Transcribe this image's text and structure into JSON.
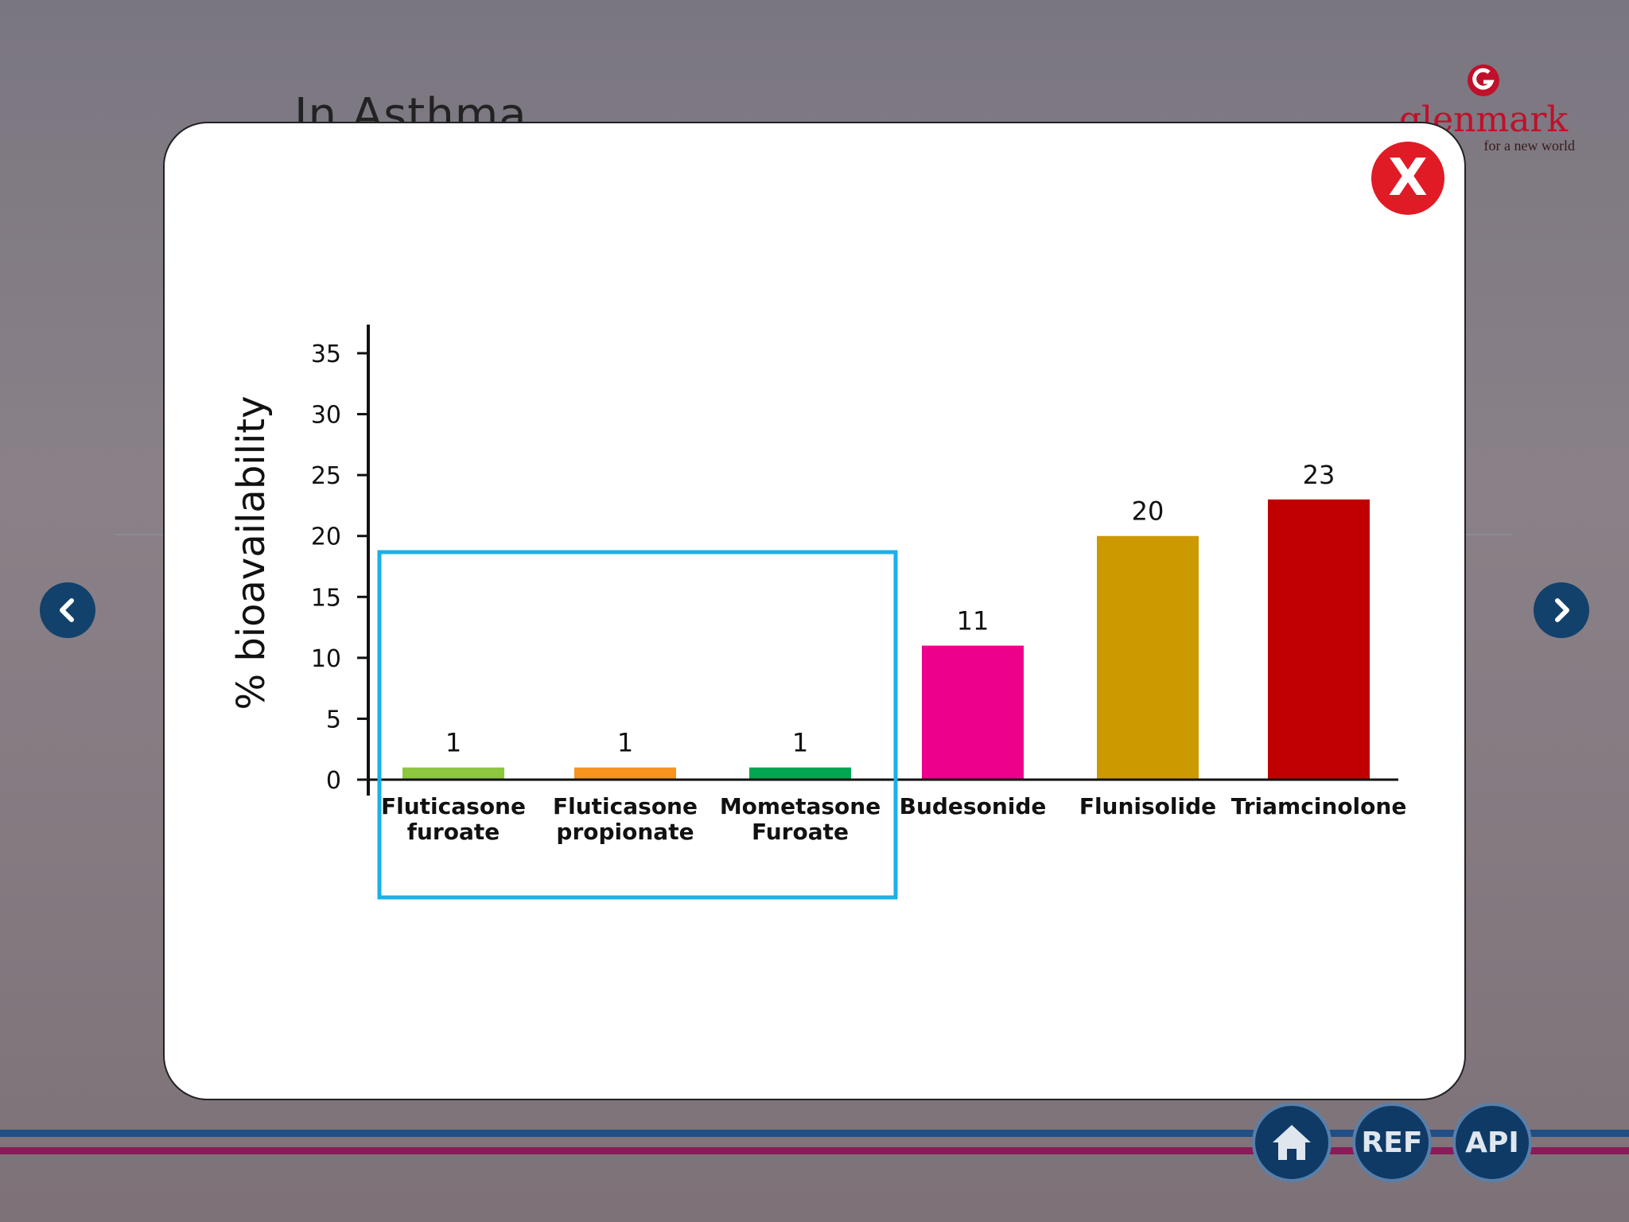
{
  "background": {
    "title": "In Asthma",
    "logo": {
      "name": "glenmark",
      "tagline": "for a new world"
    }
  },
  "navigation": {
    "prev_icon": "chevron-left-icon",
    "next_icon": "chevron-right-icon"
  },
  "footer": {
    "home_icon": "home-icon",
    "ref_label": "REF",
    "api_label": "API"
  },
  "modal": {
    "close_label": "X"
  },
  "chart_data": {
    "type": "bar",
    "title": "",
    "xlabel": "",
    "ylabel": "% bioavailability",
    "ylim": [
      0,
      35
    ],
    "yticks": [
      0,
      5,
      10,
      15,
      20,
      25,
      30,
      35
    ],
    "categories": [
      [
        "Fluticasone",
        "furoate"
      ],
      [
        "Fluticasone",
        "propionate"
      ],
      [
        "Mometasone",
        "Furoate"
      ],
      [
        "Budesonide"
      ],
      [
        "Flunisolide"
      ],
      [
        "Triamcinolone"
      ]
    ],
    "values": [
      1,
      1,
      1,
      11,
      20,
      23
    ],
    "value_labels": [
      "1",
      "1",
      "1",
      "11",
      "20",
      "23"
    ],
    "colors": [
      "#8dc63f",
      "#f7941d",
      "#00a651",
      "#ec008c",
      "#cc9900",
      "#c00000"
    ],
    "highlight": {
      "from_index": 0,
      "to_index": 2,
      "color": "#1ab0e8"
    },
    "grid": false
  }
}
